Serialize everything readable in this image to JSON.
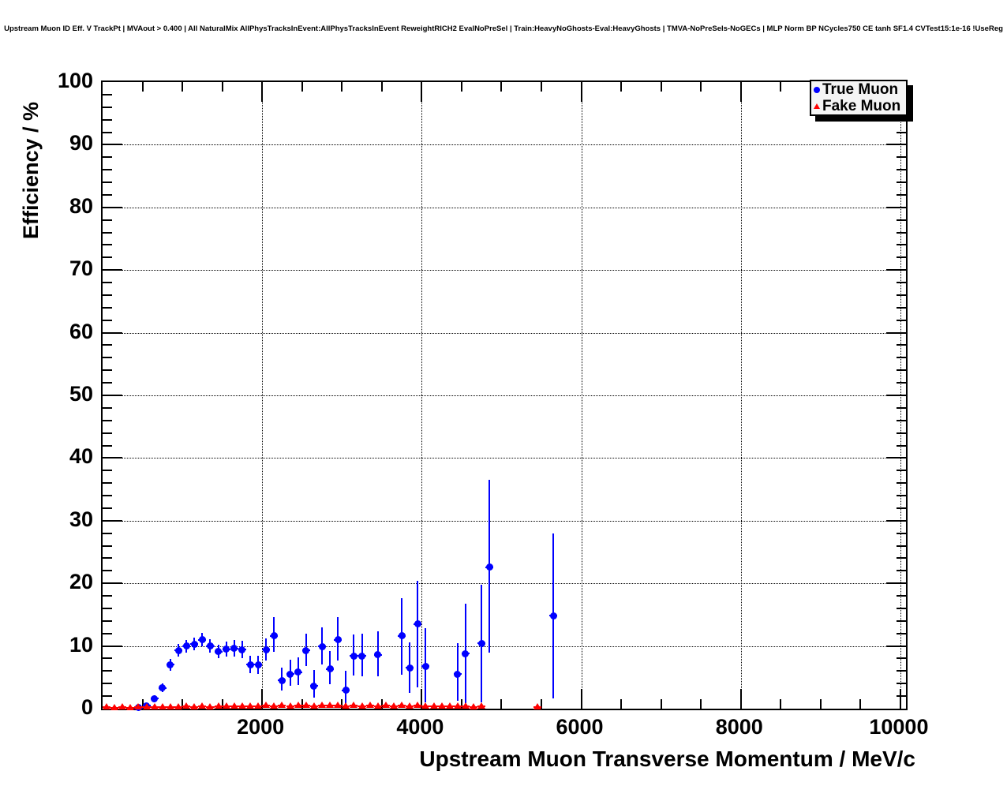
{
  "header": {
    "title": "Upstream Muon ID Eff. V TrackPt | MVAout > 0.400 | All NaturalMix AllPhysTracksInEvent:AllPhysTracksInEvent ReweightRICH2 EvalNoPreSel | Train:HeavyNoGhosts-Eval:HeavyGhosts | TMVA-NoPreSels-NoGECs | MLP Norm BP NCycles750 CE tanh SF1.4 CVTest15:1e-16 !UseReg"
  },
  "chart_data": {
    "type": "scatter",
    "title": "Upstream Muon ID Eff. V TrackPt | MVAout > 0.400 | All NaturalMix AllPhysTracksInEvent:AllPhysTracksInEvent ReweightRICH2 EvalNoPreSel | Train:HeavyNoGhosts-Eval:HeavyGhosts | TMVA-NoPreSels-NoGECs | MLP Norm BP NCycles750 CE tanh SF1.4 CVTest15:1e-16 !UseReg",
    "xlabel": "Upstream Muon Transverse Momentum / MeV/c",
    "ylabel": "Efficiency / %",
    "xlim": [
      0,
      10070
    ],
    "ylim": [
      0,
      100
    ],
    "x_ticks": [
      2000,
      4000,
      6000,
      8000,
      10000
    ],
    "x_tick_labels": [
      "2000",
      "4000",
      "6000",
      "8000",
      "10000"
    ],
    "x_minor_step": 500,
    "y_ticks": [
      0,
      10,
      20,
      30,
      40,
      50,
      60,
      70,
      80,
      90,
      100
    ],
    "y_tick_labels": [
      "0",
      "10",
      "20",
      "30",
      "40",
      "50",
      "60",
      "70",
      "80",
      "90",
      "100"
    ],
    "y_minor_step": 2,
    "grid": "dotted lines at major ticks, both axes",
    "legend_position": "top-right",
    "bin_half_width": 50,
    "series": [
      {
        "name": "True Muon",
        "color": "#0000ff",
        "marker": "circle",
        "points_format": [
          "x_MeV",
          "efficiency_pct",
          "err_low",
          "err_high"
        ],
        "points": [
          [
            450,
            0.15,
            0.15,
            0.3
          ],
          [
            550,
            0.5,
            0.3,
            0.4
          ],
          [
            650,
            1.6,
            0.5,
            0.6
          ],
          [
            750,
            3.3,
            0.6,
            0.7
          ],
          [
            850,
            7.0,
            0.9,
            0.9
          ],
          [
            950,
            9.3,
            1.0,
            1.0
          ],
          [
            1050,
            10.0,
            1.0,
            1.0
          ],
          [
            1150,
            10.3,
            1.0,
            1.0
          ],
          [
            1250,
            11.0,
            1.1,
            1.1
          ],
          [
            1350,
            10.0,
            1.1,
            1.1
          ],
          [
            1450,
            9.1,
            1.1,
            1.1
          ],
          [
            1550,
            9.5,
            1.2,
            1.2
          ],
          [
            1650,
            9.6,
            1.3,
            1.3
          ],
          [
            1750,
            9.4,
            1.4,
            1.4
          ],
          [
            1850,
            7.0,
            1.3,
            1.4
          ],
          [
            1950,
            7.0,
            1.4,
            1.5
          ],
          [
            2050,
            9.4,
            1.7,
            1.8
          ],
          [
            2150,
            11.6,
            2.5,
            3.0
          ],
          [
            2250,
            4.5,
            1.6,
            2.1
          ],
          [
            2350,
            5.5,
            1.9,
            2.3
          ],
          [
            2450,
            5.8,
            2.0,
            2.4
          ],
          [
            2550,
            9.3,
            2.5,
            2.7
          ],
          [
            2650,
            3.6,
            1.9,
            2.6
          ],
          [
            2750,
            9.9,
            2.9,
            3.1
          ],
          [
            2850,
            6.3,
            2.4,
            2.9
          ],
          [
            2950,
            11.0,
            3.3,
            3.6
          ],
          [
            3050,
            2.9,
            2.3,
            3.1
          ],
          [
            3150,
            8.4,
            3.1,
            3.5
          ],
          [
            3250,
            8.4,
            3.2,
            3.6
          ],
          [
            3450,
            8.6,
            3.4,
            3.8
          ],
          [
            3750,
            11.6,
            6.2,
            6.0
          ],
          [
            3850,
            6.5,
            4.0,
            4.1
          ],
          [
            3950,
            13.5,
            10.1,
            6.9
          ],
          [
            4050,
            6.8,
            5.8,
            6.1
          ],
          [
            4450,
            5.5,
            4.3,
            4.9
          ],
          [
            4550,
            8.8,
            7.9,
            8.0
          ],
          [
            4750,
            10.4,
            9.4,
            9.4
          ],
          [
            4850,
            22.6,
            13.6,
            13.9
          ],
          [
            5650,
            14.8,
            13.2,
            13.1
          ]
        ]
      },
      {
        "name": "Fake Muon",
        "color": "#ff0000",
        "marker": "triangle",
        "points_format": [
          "x_MeV",
          "efficiency_pct",
          "err_low",
          "err_high"
        ],
        "points": [
          [
            50,
            0.2,
            0.15,
            0.15
          ],
          [
            150,
            0.15,
            0.1,
            0.1
          ],
          [
            250,
            0.2,
            0.1,
            0.1
          ],
          [
            350,
            0.15,
            0.1,
            0.1
          ],
          [
            450,
            0.2,
            0.1,
            0.1
          ],
          [
            550,
            0.2,
            0.1,
            0.1
          ],
          [
            650,
            0.25,
            0.1,
            0.1
          ],
          [
            750,
            0.2,
            0.1,
            0.1
          ],
          [
            850,
            0.3,
            0.1,
            0.1
          ],
          [
            950,
            0.3,
            0.1,
            0.1
          ],
          [
            1050,
            0.35,
            0.1,
            0.1
          ],
          [
            1150,
            0.3,
            0.1,
            0.1
          ],
          [
            1250,
            0.35,
            0.1,
            0.1
          ],
          [
            1350,
            0.3,
            0.1,
            0.1
          ],
          [
            1450,
            0.35,
            0.1,
            0.1
          ],
          [
            1550,
            0.35,
            0.1,
            0.1
          ],
          [
            1650,
            0.4,
            0.1,
            0.1
          ],
          [
            1750,
            0.35,
            0.1,
            0.1
          ],
          [
            1850,
            0.4,
            0.1,
            0.1
          ],
          [
            1950,
            0.35,
            0.1,
            0.1
          ],
          [
            2050,
            0.45,
            0.15,
            0.15
          ],
          [
            2150,
            0.4,
            0.15,
            0.15
          ],
          [
            2250,
            0.45,
            0.15,
            0.15
          ],
          [
            2350,
            0.4,
            0.15,
            0.15
          ],
          [
            2450,
            0.45,
            0.15,
            0.15
          ],
          [
            2550,
            0.45,
            0.15,
            0.15
          ],
          [
            2650,
            0.4,
            0.15,
            0.15
          ],
          [
            2750,
            0.5,
            0.15,
            0.15
          ],
          [
            2850,
            0.45,
            0.15,
            0.15
          ],
          [
            2950,
            0.5,
            0.2,
            0.2
          ],
          [
            3050,
            0.4,
            0.2,
            0.2
          ],
          [
            3150,
            0.45,
            0.2,
            0.2
          ],
          [
            3250,
            0.4,
            0.2,
            0.2
          ],
          [
            3350,
            0.45,
            0.2,
            0.2
          ],
          [
            3450,
            0.4,
            0.2,
            0.2
          ],
          [
            3550,
            0.45,
            0.2,
            0.2
          ],
          [
            3650,
            0.4,
            0.2,
            0.2
          ],
          [
            3750,
            0.45,
            0.2,
            0.2
          ],
          [
            3850,
            0.35,
            0.2,
            0.2
          ],
          [
            3950,
            0.45,
            0.2,
            0.2
          ],
          [
            4050,
            0.4,
            0.2,
            0.2
          ],
          [
            4150,
            0.35,
            0.2,
            0.2
          ],
          [
            4250,
            0.4,
            0.2,
            0.2
          ],
          [
            4350,
            0.35,
            0.2,
            0.2
          ],
          [
            4450,
            0.4,
            0.2,
            0.2
          ],
          [
            4550,
            0.35,
            0.2,
            0.2
          ],
          [
            4650,
            0.3,
            0.2,
            0.2
          ],
          [
            4750,
            0.35,
            0.2,
            0.2
          ],
          [
            5450,
            0.3,
            0.2,
            0.2
          ]
        ]
      }
    ]
  },
  "colors": {
    "true_muon": "#0000ff",
    "fake_muon": "#ff0000",
    "axis": "#000000",
    "legend_background": "#f4f4f4",
    "page_background": "#ffffff"
  }
}
